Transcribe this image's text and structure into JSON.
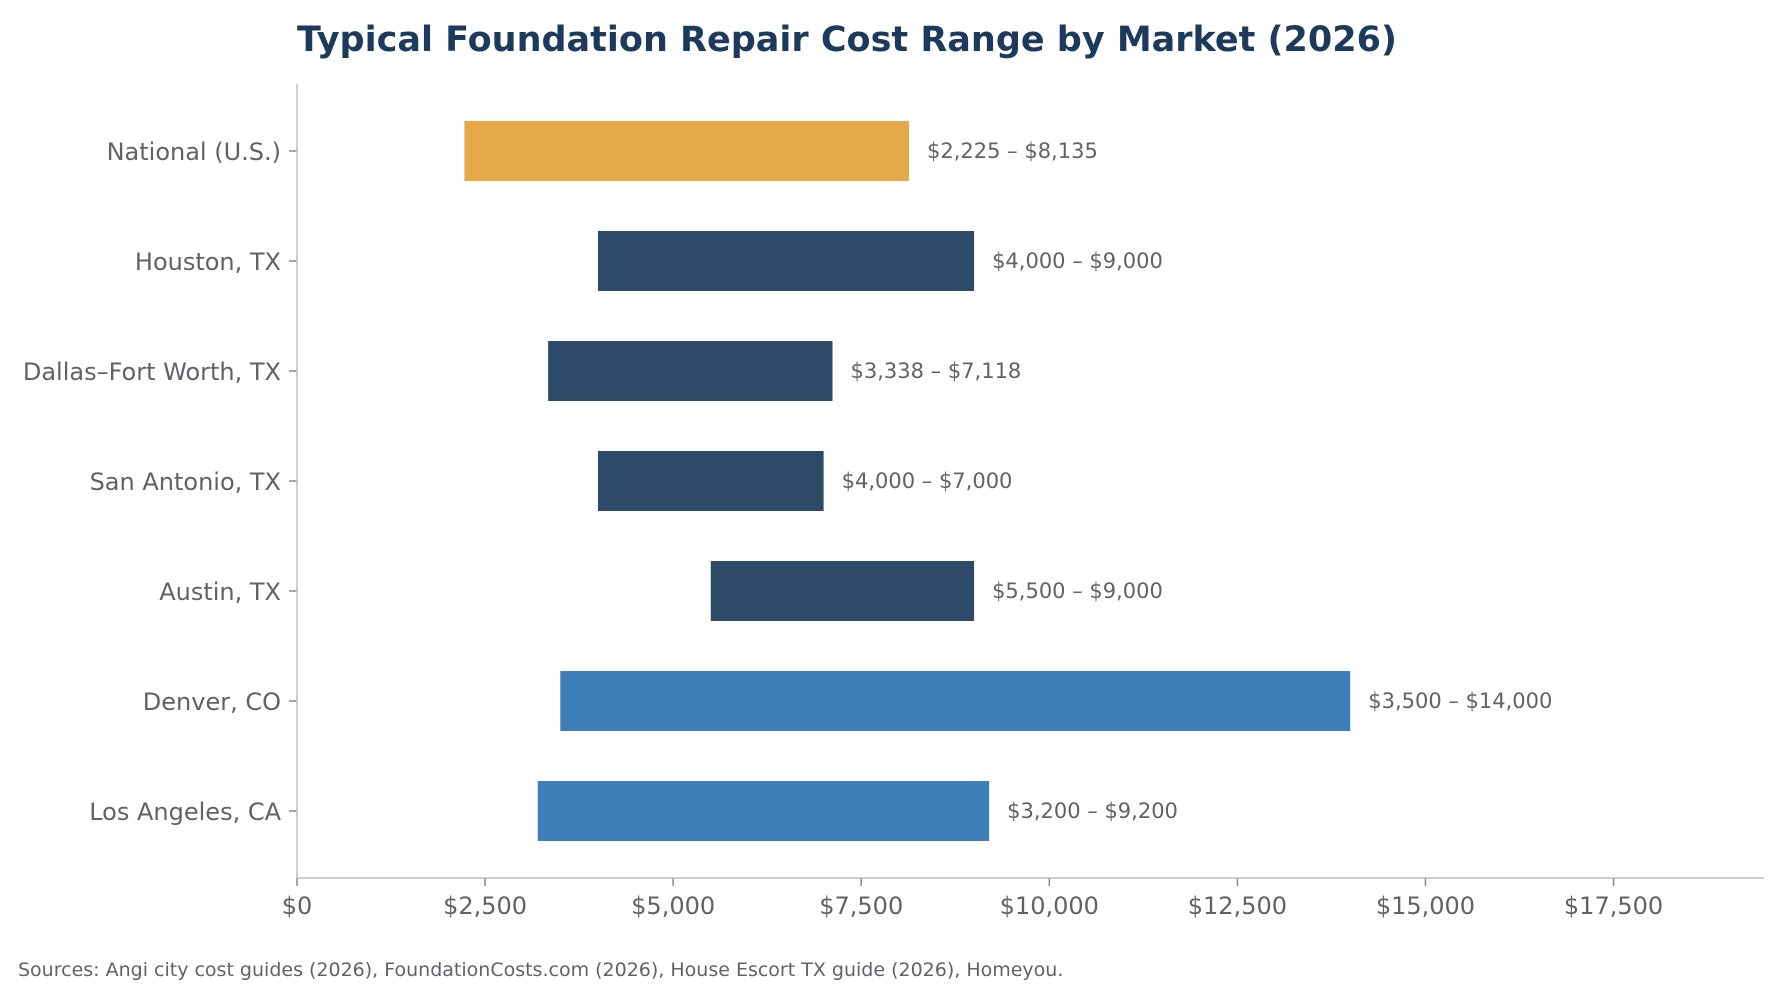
{
  "chart_data": {
    "type": "bar",
    "orientation": "horizontal-range",
    "title": "Typical Foundation Repair Cost Range by Market (2026)",
    "xlabel": "",
    "ylabel": "",
    "xlim": [
      0,
      19500
    ],
    "grid": false,
    "x_ticks": [
      0,
      2500,
      5000,
      7500,
      10000,
      12500,
      15000,
      17500
    ],
    "x_tick_labels": [
      "$0",
      "$2,500",
      "$5,000",
      "$7,500",
      "$10,000",
      "$12,500",
      "$15,000",
      "$17,500"
    ],
    "categories": [
      "National (U.S.)",
      "Houston, TX",
      "Dallas–Fort Worth, TX",
      "San Antonio, TX",
      "Austin, TX",
      "Denver, CO",
      "Los Angeles, CA"
    ],
    "low": [
      2225,
      4000,
      3338,
      4000,
      5500,
      3500,
      3200
    ],
    "high": [
      8135,
      9000,
      7118,
      7000,
      9000,
      14000,
      9200
    ],
    "data_labels": [
      "$2,225 – $8,135",
      "$4,000 – $9,000",
      "$3,338 – $7,118",
      "$4,000 – $7,000",
      "$5,500 – $9,000",
      "$3,500 – $14,000",
      "$3,200 – $9,200"
    ],
    "colors": [
      "#e6a94a",
      "#2d4a68",
      "#2d4a68",
      "#2d4a68",
      "#2d4a68",
      "#3f7fb9",
      "#3f7fb9"
    ],
    "source_note": "Sources: Angi city cost guides (2026), FoundationCosts.com (2026), House Escort TX guide (2026), Homeyou."
  }
}
